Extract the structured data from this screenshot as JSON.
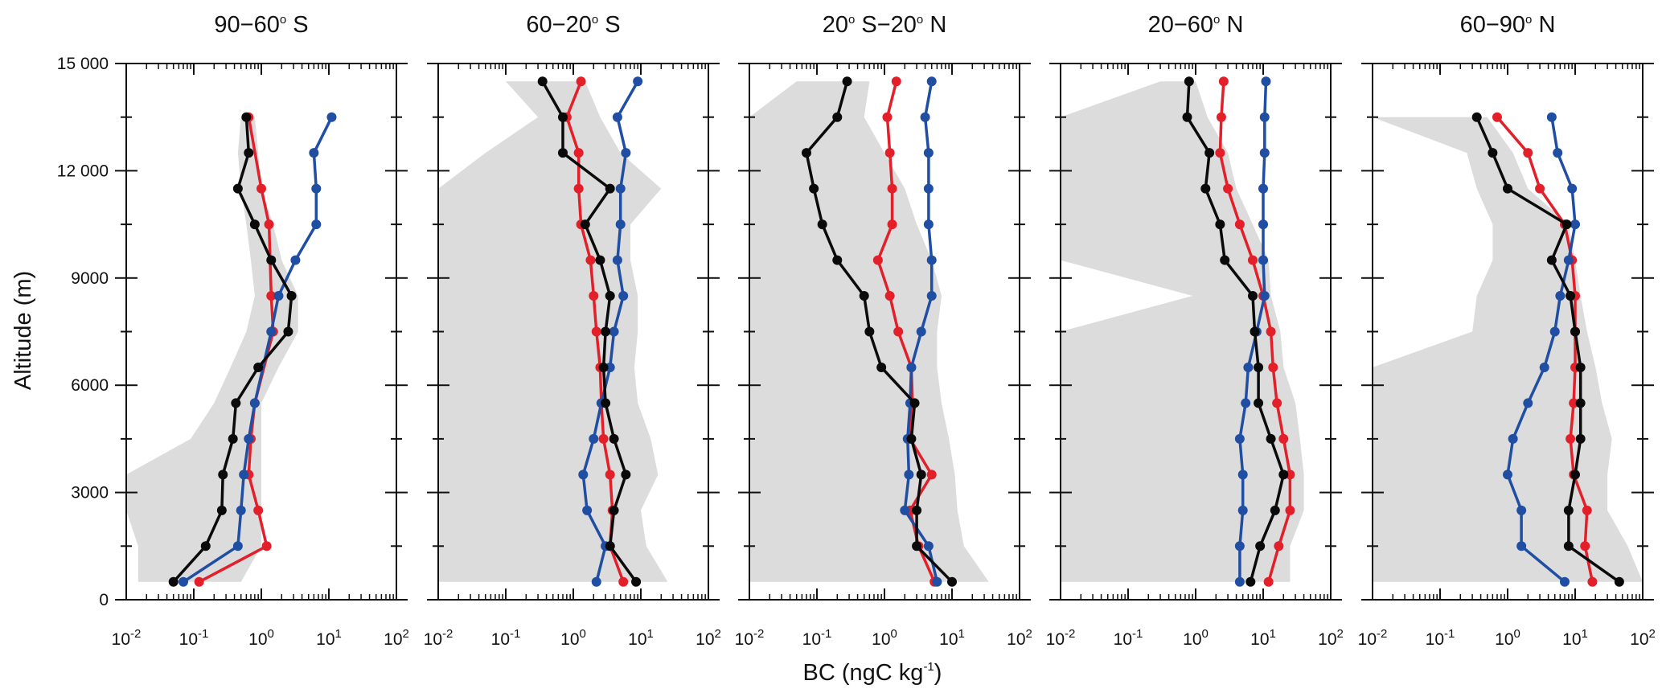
{
  "chart_data": {
    "type": "line",
    "xlabel": "BC (ngC kg",
    "xlabel_sup": "-1",
    "xlabel_end": ")",
    "ylabel": "Altitude (m)",
    "xscale": "log",
    "xlim": [
      0.01,
      100
    ],
    "ylim": [
      0,
      15000
    ],
    "yticks": [
      "0",
      "3000",
      "6000",
      "9000",
      "12 000",
      "15 000"
    ],
    "xtick_base": "10",
    "xtick_exps": [
      "-2",
      "-1",
      "0",
      "1",
      "2"
    ],
    "colors": {
      "black": "#0a0a0a",
      "red": "#e3202a",
      "blue": "#1f4ea3",
      "shade": "#dcdcdc"
    },
    "panels": [
      {
        "title_parts": [
          "90−60",
          "o",
          " S"
        ],
        "altitudes": [
          13500,
          12500,
          11500,
          10500,
          9500,
          8500,
          7500,
          6500,
          5500,
          4500,
          3500,
          2500,
          1500,
          500
        ],
        "black": [
          0.6,
          0.65,
          0.45,
          0.8,
          1.4,
          2.8,
          2.5,
          0.9,
          0.42,
          0.38,
          0.27,
          0.26,
          0.15,
          0.05
        ],
        "red": [
          0.65,
          null,
          1.0,
          1.3,
          null,
          1.4,
          1.5,
          null,
          0.8,
          0.7,
          0.65,
          0.9,
          1.2,
          0.12
        ],
        "blue": [
          11,
          6,
          6.5,
          6.5,
          3.2,
          1.8,
          1.4,
          null,
          0.8,
          0.65,
          0.55,
          0.5,
          0.45,
          0.07
        ],
        "shade_left": [
          0.5,
          0.45,
          0.5,
          0.6,
          0.7,
          0.8,
          0.6,
          0.35,
          0.2,
          0.09,
          0.01,
          0.01,
          0.015,
          0.015
        ],
        "shade_right": [
          0.8,
          0.9,
          1.0,
          1.5,
          2.0,
          3.5,
          3.5,
          1.8,
          1.0,
          1.0,
          1.0,
          1.0,
          1.0,
          0.5
        ]
      },
      {
        "title_parts": [
          "60−20",
          "o",
          " S"
        ],
        "altitudes": [
          14500,
          13500,
          12500,
          11500,
          10500,
          9500,
          8500,
          7500,
          6500,
          5500,
          4500,
          3500,
          2500,
          1500,
          500
        ],
        "black": [
          0.35,
          0.7,
          0.7,
          3.5,
          1.5,
          2.5,
          3.5,
          3.0,
          2.8,
          3.0,
          4.0,
          6.0,
          4.0,
          3.5,
          8.5
        ],
        "red": [
          1.3,
          0.8,
          1.2,
          1.2,
          1.3,
          1.8,
          2.0,
          2.2,
          2.5,
          2.6,
          2.8,
          3.5,
          3.8,
          3.5,
          5.5
        ],
        "blue": [
          9.0,
          4.5,
          6.0,
          5.0,
          5.0,
          4.5,
          5.5,
          4.0,
          3.5,
          2.6,
          2.0,
          1.4,
          1.6,
          3.0,
          2.2
        ],
        "shade_left": [
          0.1,
          0.3,
          0.05,
          0.01,
          0.01,
          0.01,
          0.01,
          0.01,
          0.01,
          0.01,
          0.01,
          0.01,
          0.01,
          0.01,
          0.01
        ],
        "shade_right": [
          1.5,
          2.5,
          5.0,
          20.0,
          7.0,
          7.0,
          9.0,
          9.0,
          8.0,
          9.0,
          14.0,
          18.0,
          10.0,
          12.0,
          25.0
        ]
      },
      {
        "title_parts": [
          "20",
          "o",
          " S−20",
          "o",
          " N"
        ],
        "altitudes": [
          14500,
          13500,
          12500,
          11500,
          10500,
          9500,
          8500,
          7500,
          6500,
          5500,
          4500,
          3500,
          2500,
          1500,
          500
        ],
        "black": [
          0.28,
          0.2,
          0.07,
          0.09,
          0.12,
          0.2,
          0.5,
          0.6,
          0.9,
          2.8,
          2.5,
          3.5,
          3.0,
          3.0,
          10.0
        ],
        "red": [
          1.5,
          1.1,
          1.2,
          1.3,
          1.3,
          0.8,
          1.2,
          1.6,
          2.5,
          2.6,
          2.4,
          5.0,
          2.4,
          3.2,
          5.5
        ],
        "blue": [
          5.0,
          4.0,
          4.5,
          4.5,
          4.5,
          5.0,
          5.0,
          3.5,
          2.5,
          2.4,
          2.2,
          2.3,
          2.0,
          4.5,
          6.0
        ],
        "shade_left": [
          0.05,
          0.01,
          0.01,
          0.01,
          0.01,
          0.01,
          0.01,
          0.01,
          0.01,
          0.01,
          0.01,
          0.01,
          0.01,
          0.01,
          0.01
        ],
        "shade_right": [
          0.6,
          0.5,
          1.0,
          2.0,
          3.0,
          5.0,
          7.0,
          6.0,
          6.0,
          7.0,
          9.0,
          11.0,
          12.0,
          15.0,
          35.0
        ]
      },
      {
        "title_parts": [
          "20−60",
          "o",
          " N"
        ],
        "altitudes": [
          14500,
          13500,
          12500,
          11500,
          10500,
          9500,
          8500,
          7500,
          6500,
          5500,
          4500,
          3500,
          2500,
          1500,
          500
        ],
        "black": [
          0.8,
          0.75,
          1.6,
          1.4,
          2.3,
          2.7,
          7.0,
          7.5,
          8.5,
          8.5,
          13.0,
          20.0,
          15.0,
          9.0,
          6.5
        ],
        "red": [
          2.6,
          2.4,
          2.3,
          3.0,
          4.5,
          7.0,
          10.0,
          13.0,
          14.0,
          16.0,
          20.0,
          25.0,
          25.0,
          17.0,
          12.0
        ],
        "blue": [
          11.0,
          10.5,
          10.5,
          10.0,
          10.0,
          10.0,
          10.5,
          8.0,
          6.0,
          5.5,
          4.5,
          5.0,
          5.0,
          4.5,
          4.5
        ],
        "shade_left": [
          0.3,
          0.01,
          0.01,
          0.01,
          0.01,
          0.01,
          0.9,
          0.01,
          0.01,
          0.01,
          0.01,
          0.01,
          0.01,
          0.01,
          0.01
        ],
        "shade_right": [
          1.0,
          1.5,
          3.0,
          4.0,
          7.0,
          12.0,
          13.0,
          18.0,
          20.0,
          30.0,
          35.0,
          40.0,
          40.0,
          25.0,
          25.0
        ]
      },
      {
        "title_parts": [
          "60−90",
          "o",
          " N"
        ],
        "altitudes": [
          13500,
          12500,
          11500,
          10500,
          9500,
          8500,
          7500,
          6500,
          5500,
          4500,
          3500,
          2500,
          1500,
          500
        ],
        "black": [
          0.35,
          0.6,
          1.0,
          7.5,
          4.5,
          8.5,
          10.0,
          12.0,
          12.0,
          12.0,
          10.0,
          8.0,
          8.0,
          45.0
        ],
        "red": [
          0.7,
          2.0,
          3.0,
          7.0,
          9.0,
          10.0,
          10.0,
          10.0,
          9.5,
          8.5,
          9.5,
          15.0,
          14.0,
          18.0
        ],
        "blue": [
          4.5,
          5.5,
          9.0,
          10.0,
          8.0,
          6.0,
          5.0,
          3.5,
          2.0,
          1.2,
          1.0,
          1.6,
          1.6,
          7.0
        ],
        "shade_left": [
          0.01,
          0.25,
          0.35,
          0.6,
          0.6,
          0.35,
          0.3,
          0.01,
          0.01,
          0.01,
          0.01,
          0.01,
          0.01,
          0.01
        ],
        "shade_right": [
          0.5,
          1.2,
          2.0,
          8.0,
          10.0,
          12.0,
          15.0,
          20.0,
          25.0,
          35.0,
          30.0,
          30.0,
          60.0,
          100.0
        ]
      }
    ]
  }
}
